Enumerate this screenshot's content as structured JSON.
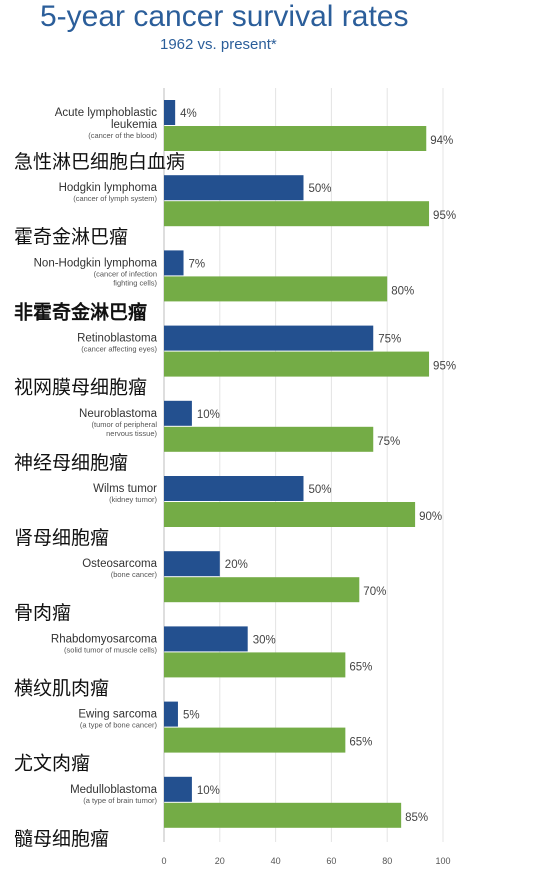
{
  "title": "5-year cancer survival rates",
  "subtitle": "1962 vs. present*",
  "colors": {
    "series_1962": "#23508f",
    "series_present": "#74ac46",
    "title": "#2b5e9a"
  },
  "chart_data": {
    "type": "bar",
    "orientation": "horizontal",
    "xlim": [
      0,
      100
    ],
    "x_ticks": [
      "0",
      "20",
      "40",
      "60",
      "80",
      "100"
    ],
    "grid": true,
    "categories": [
      {
        "name": [
          "Acute lymphoblastic",
          "leukemia"
        ],
        "note": [
          "(cancer of the blood)"
        ],
        "zh": "急性淋巴细胞白血病",
        "zh_bold": false
      },
      {
        "name": [
          "Hodgkin lymphoma"
        ],
        "note": [
          "(cancer of lymph system)"
        ],
        "zh": "霍奇金淋巴瘤",
        "zh_bold": false
      },
      {
        "name": [
          "Non-Hodgkin lymphoma"
        ],
        "note": [
          "(cancer of infection",
          "fighting cells)"
        ],
        "zh": "非霍奇金淋巴瘤",
        "zh_bold": true
      },
      {
        "name": [
          "Retinoblastoma"
        ],
        "note": [
          "(cancer affecting eyes)"
        ],
        "zh": "视网膜母细胞瘤",
        "zh_bold": false
      },
      {
        "name": [
          "Neuroblastoma"
        ],
        "note": [
          "(tumor of peripheral",
          "nervous tissue)"
        ],
        "zh": "神经母细胞瘤",
        "zh_bold": false
      },
      {
        "name": [
          "Wilms tumor"
        ],
        "note": [
          "(kidney tumor)"
        ],
        "zh": "肾母细胞瘤",
        "zh_bold": false
      },
      {
        "name": [
          "Osteosarcoma"
        ],
        "note": [
          "(bone cancer)"
        ],
        "zh": "骨肉瘤",
        "zh_bold": false
      },
      {
        "name": [
          "Rhabdomyosarcoma"
        ],
        "note": [
          "(solid tumor of muscle cells)"
        ],
        "zh": "横纹肌肉瘤",
        "zh_bold": false
      },
      {
        "name": [
          "Ewing sarcoma"
        ],
        "note": [
          "(a type of bone cancer)"
        ],
        "zh": "尤文肉瘤",
        "zh_bold": false
      },
      {
        "name": [
          "Medulloblastoma"
        ],
        "note": [
          "(a type of brain tumor)"
        ],
        "zh": "髓母细胞瘤",
        "zh_bold": false
      }
    ],
    "series": [
      {
        "values": [
          4,
          50,
          7,
          75,
          10,
          50,
          20,
          30,
          5,
          10
        ],
        "labels": [
          "4%",
          "50%",
          "7%",
          "75%",
          "10%",
          "50%",
          "20%",
          "30%",
          "5%",
          "10%"
        ]
      },
      {
        "values": [
          94,
          95,
          80,
          95,
          75,
          90,
          70,
          65,
          65,
          85
        ],
        "labels": [
          "94%",
          "95%",
          "80%",
          "95%",
          "75%",
          "90%",
          "70%",
          "65%",
          "65%",
          "85%"
        ]
      }
    ]
  }
}
